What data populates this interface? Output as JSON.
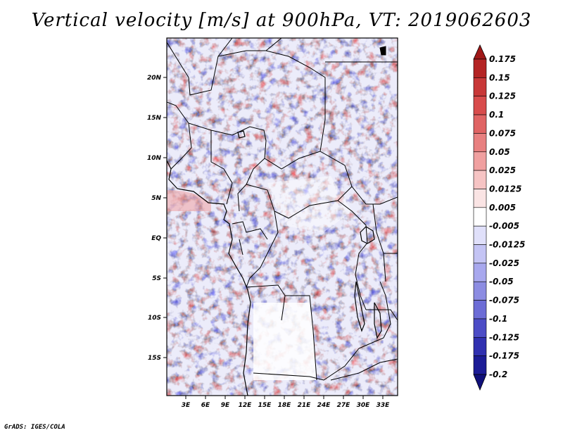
{
  "title": "Vertical velocity [m/s] at 900hPa, VT: 2019062603",
  "credit": "GrADS: IGES/COLA",
  "map": {
    "lat_ticks": [
      "20N",
      "15N",
      "10N",
      "5N",
      "EQ",
      "5S",
      "10S",
      "15S"
    ],
    "lon_ticks": [
      "3E",
      "6E",
      "9E",
      "12E",
      "15E",
      "18E",
      "21E",
      "24E",
      "27E",
      "30E",
      "33E"
    ]
  },
  "colorbar": {
    "labels": [
      "0.175",
      "0.15",
      "0.125",
      "0.1",
      "0.075",
      "0.05",
      "0.025",
      "0.0125",
      "0.005",
      "-0.005",
      "-0.0125",
      "-0.025",
      "-0.05",
      "-0.075",
      "-0.1",
      "-0.125",
      "-0.175",
      "-0.2"
    ],
    "colors": [
      "#a01818",
      "#b42424",
      "#c83838",
      "#d84c4c",
      "#e06464",
      "#e88080",
      "#f0a0a0",
      "#f6c4c4",
      "#fae4e4",
      "#ffffff",
      "#e0e0fa",
      "#c4c4f4",
      "#a8a8ee",
      "#8c8ce2",
      "#6c6cd6",
      "#4c4cc6",
      "#3030b0",
      "#1c1c96",
      "#10107a"
    ]
  }
}
